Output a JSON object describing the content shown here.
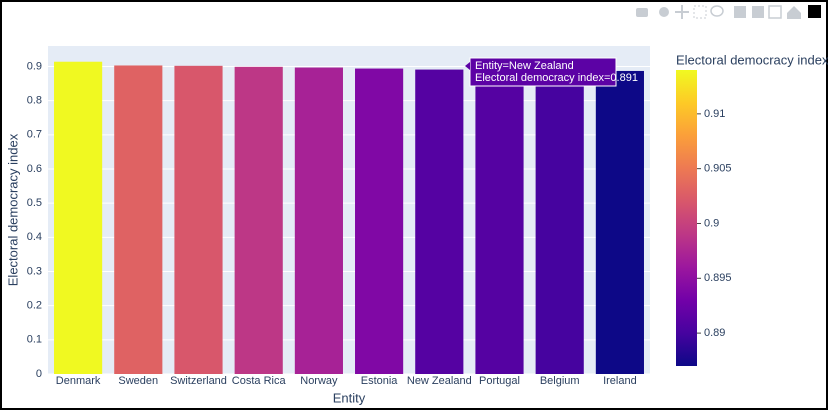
{
  "chart_data": {
    "type": "bar",
    "x_label": "Entity",
    "y_label": "Electoral democracy index",
    "categories": [
      "Denmark",
      "Sweden",
      "Switzerland",
      "Costa Rica",
      "Norway",
      "Estonia",
      "New Zealand",
      "Portugal",
      "Belgium",
      "Ireland"
    ],
    "values": [
      0.914,
      0.903,
      0.902,
      0.899,
      0.897,
      0.894,
      0.891,
      0.891,
      0.89,
      0.887
    ],
    "ylim": [
      0,
      0.96
    ],
    "yticks": [
      0,
      0.1,
      0.2,
      0.3,
      0.4,
      0.5,
      0.6,
      0.7,
      0.8,
      0.9
    ],
    "grid": true,
    "colorbar": {
      "title": "Electoral democracy index",
      "clim": [
        0.887,
        0.914
      ],
      "ticks": [
        0.89,
        0.895,
        0.9,
        0.905,
        0.91
      ],
      "colorscale": [
        "#0d0887",
        "#46039f",
        "#7201a8",
        "#9c179e",
        "#bd3786",
        "#d8576b",
        "#ed7953",
        "#fb9f3a",
        "#fdca26",
        "#f0f921"
      ]
    },
    "tooltip": [
      "Entity=New Zealand",
      "Electoral democracy index=0.891"
    ]
  }
}
